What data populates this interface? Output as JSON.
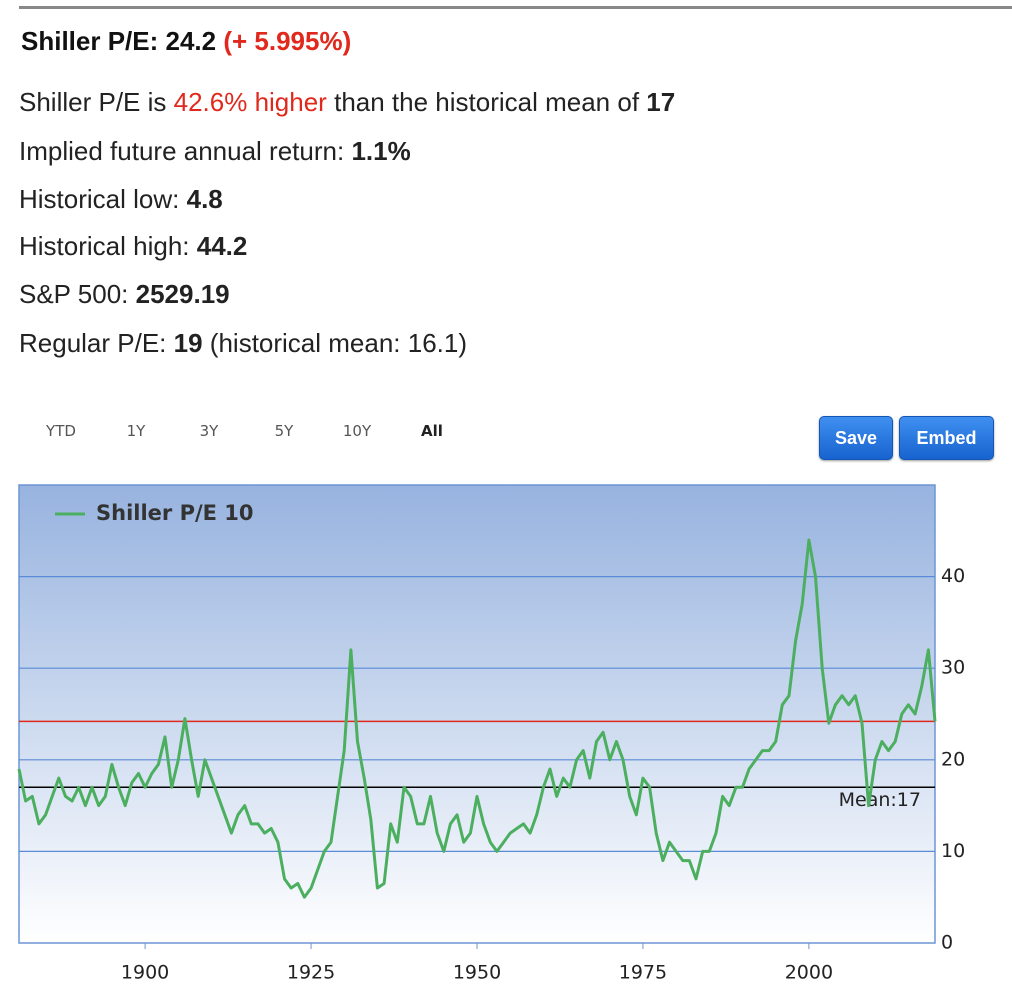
{
  "header": {
    "title": "Shiller P/E: 24.2",
    "change": "(+ 5.995%)"
  },
  "summary": {
    "text": "Shiller P/E is",
    "highlight": "42.6% higher",
    "text2": "than the historical mean of",
    "value": "17"
  },
  "stats": [
    {
      "label": "Implied future annual return:",
      "value": "1.1%"
    },
    {
      "label": "Historical low:",
      "value": "4.8"
    },
    {
      "label": "Historical high:",
      "value": "44.2"
    },
    {
      "label": "S&P 500:",
      "value": "2529.19"
    },
    {
      "label": "Regular P/E:",
      "value": "19",
      "note": "(historical mean: 16.1)"
    }
  ],
  "ranges": [
    "YTD",
    "1Y",
    "3Y",
    "5Y",
    "10Y",
    "All"
  ],
  "buttons": [
    "Save",
    "Embed"
  ],
  "chart_data": {
    "type": "line",
    "series": [
      {
        "name": "Shiller P/E 10",
        "color": "#4caf60",
        "x": [
          1881,
          1882,
          1883,
          1884,
          1885,
          1886,
          1887,
          1888,
          1889,
          1890,
          1891,
          1892,
          1893,
          1894,
          1895,
          1896,
          1897,
          1898,
          1899,
          1900,
          1901,
          1902,
          1903,
          1904,
          1905,
          1906,
          1907,
          1908,
          1909,
          1910,
          1911,
          1912,
          1913,
          1914,
          1915,
          1916,
          1917,
          1918,
          1919,
          1920,
          1921,
          1922,
          1923,
          1924,
          1925,
          1926,
          1927,
          1928,
          1929,
          1930,
          1931,
          1932,
          1933,
          1934,
          1935,
          1936,
          1937,
          1938,
          1939,
          1940,
          1941,
          1942,
          1943,
          1944,
          1945,
          1946,
          1947,
          1948,
          1949,
          1950,
          1951,
          1952,
          1953,
          1954,
          1955,
          1956,
          1957,
          1958,
          1959,
          1960,
          1961,
          1962,
          1963,
          1964,
          1965,
          1966,
          1967,
          1968,
          1969,
          1970,
          1971,
          1972,
          1973,
          1974,
          1975,
          1976,
          1977,
          1978,
          1979,
          1980,
          1981,
          1982,
          1983,
          1984,
          1985,
          1986,
          1987,
          1988,
          1989,
          1990,
          1991,
          1992,
          1993,
          1994,
          1995,
          1996,
          1997,
          1998,
          1999,
          2000,
          2001,
          2002,
          2003,
          2004,
          2005,
          2006,
          2007,
          2008,
          2009,
          2010,
          2011,
          2012,
          2013,
          2014,
          2015,
          2016,
          2017,
          2018,
          2019
        ],
        "values": [
          19,
          15.5,
          16,
          13,
          14,
          16,
          18,
          16,
          15.5,
          17,
          15,
          17,
          15,
          16,
          19.5,
          17,
          15,
          17.5,
          18.5,
          17,
          18.5,
          19.5,
          22.5,
          17,
          20,
          24.5,
          20,
          16,
          20,
          18,
          16,
          14,
          12,
          14,
          15,
          13,
          13,
          12,
          12.5,
          11,
          7,
          6,
          6.5,
          5,
          6,
          8,
          10,
          11,
          16,
          21,
          32,
          22,
          18,
          13.5,
          6,
          6.5,
          13,
          11,
          17,
          16,
          13,
          13,
          16,
          12,
          10,
          13,
          14,
          11,
          12,
          16,
          13,
          11,
          10,
          11,
          12,
          12.5,
          13,
          12,
          14,
          17,
          19,
          16,
          18,
          17,
          20,
          21,
          18,
          22,
          23,
          20,
          22,
          20,
          16,
          14,
          18,
          17,
          12,
          9,
          11,
          10,
          9,
          9,
          7,
          10,
          10,
          12,
          16,
          15,
          17,
          17,
          19,
          20,
          21,
          21,
          22,
          26,
          27,
          33,
          37,
          44,
          40,
          30,
          24,
          26,
          27,
          26,
          27,
          24,
          15,
          20,
          22,
          21,
          22,
          25,
          26,
          25,
          28,
          32,
          24.2
        ]
      }
    ],
    "xlim": [
      1881,
      2019
    ],
    "xticks": [
      1900,
      1925,
      1950,
      1975,
      2000
    ],
    "ylim": [
      0,
      50
    ],
    "yticks": [
      0,
      10,
      20,
      30,
      40
    ],
    "grid": true,
    "plot_lines": [
      {
        "value": 24.2,
        "color": "#e0291c"
      },
      {
        "value": 17,
        "color": "#000000",
        "label": "Mean:17"
      }
    ]
  }
}
